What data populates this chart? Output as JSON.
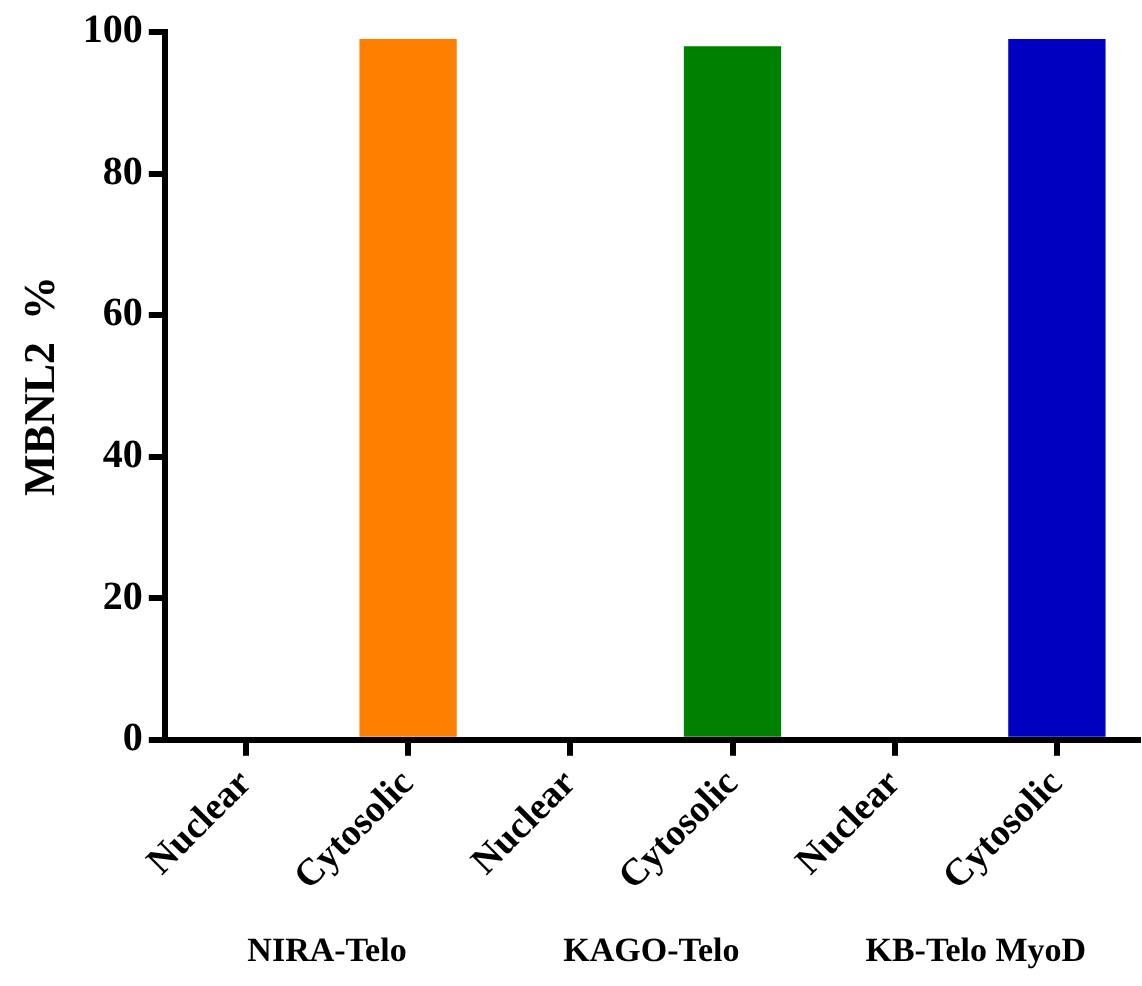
{
  "chart_data": {
    "type": "bar",
    "ylabel": "MBNL2  %",
    "categories": [
      "Nuclear",
      "Cytosolic",
      "Nuclear",
      "Cytosolic",
      "Nuclear",
      "Cytosolic"
    ],
    "values": [
      0,
      99,
      0,
      98,
      0,
      99
    ],
    "colors": [
      "#ff8000",
      "#ff8000",
      "#008000",
      "#008000",
      "#0000c0",
      "#0000c0"
    ],
    "ylim": [
      0,
      100
    ],
    "yticks": [
      0,
      20,
      40,
      60,
      80,
      100
    ],
    "grid": false,
    "legend": false,
    "annotations": [
      "NIRA-Telo",
      "KAGO-Telo",
      "KB-Telo MyoD"
    ]
  }
}
